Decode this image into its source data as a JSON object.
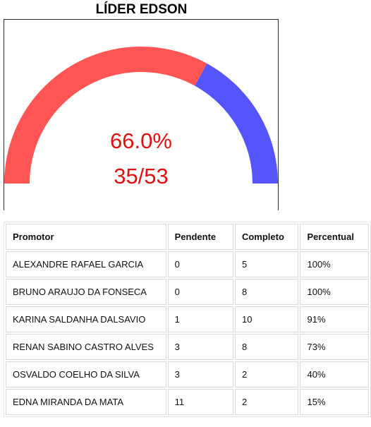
{
  "title": "LÍDER EDSON",
  "gauge": {
    "fraction": 0.66,
    "percent_text": "66.0%",
    "ratio_text": "35/53",
    "completed_color": "#ff5555",
    "pending_color": "#5555ff",
    "text_color": "#e31010"
  },
  "table": {
    "headers": [
      "Promotor",
      "Pendente",
      "Completo",
      "Percentual"
    ],
    "rows": [
      [
        "ALEXANDRE RAFAEL GARCIA",
        "0",
        "5",
        "100%"
      ],
      [
        "BRUNO ARAUJO DA FONSECA",
        "0",
        "8",
        "100%"
      ],
      [
        "KARINA SALDANHA DALSAVIO",
        "1",
        "10",
        "91%"
      ],
      [
        "RENAN SABINO CASTRO ALVES",
        "3",
        "8",
        "73%"
      ],
      [
        "OSVALDO COELHO DA SILVA",
        "3",
        "2",
        "40%"
      ],
      [
        "EDNA MIRANDA DA MATA",
        "11",
        "2",
        "15%"
      ]
    ]
  }
}
